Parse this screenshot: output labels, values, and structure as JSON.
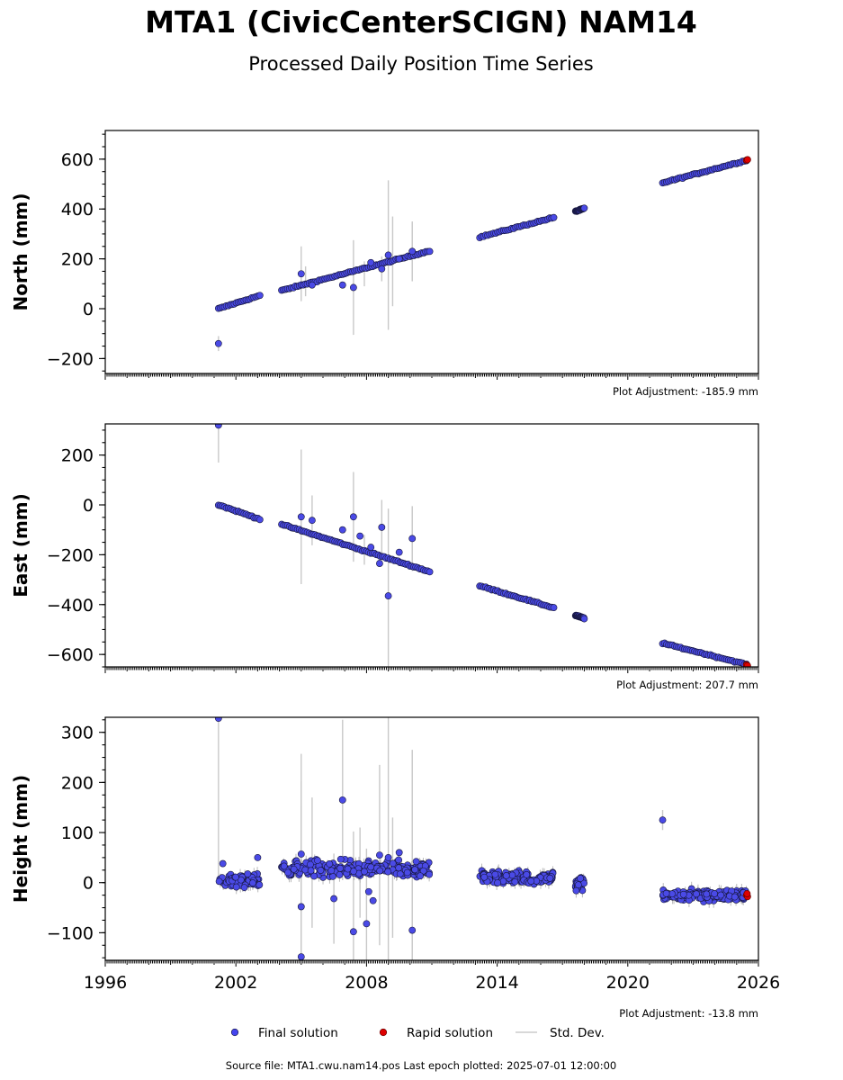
{
  "title": "MTA1 (CivicCenterSCIGN) NAM14",
  "subtitle": "Processed Daily Position Time Series",
  "footer": "Source file: MTA1.cwu.nam14.pos  Last epoch plotted: 2025-07-01 12:00:00",
  "legend": [
    {
      "label": "Final solution",
      "kind": "final-dot",
      "color": "#4444ee"
    },
    {
      "label": "Rapid solution",
      "kind": "rapid-dot",
      "color": "#dd0000"
    },
    {
      "label": "Std. Dev.",
      "kind": "stddev-line",
      "color": "#cccccc"
    }
  ],
  "chart_data": [
    {
      "type": "scatter",
      "ylabel": "North (mm)",
      "adjustment": "Plot Adjustment: -185.9 mm",
      "xlim": [
        1996,
        2026
      ],
      "ylim": [
        -260,
        715
      ],
      "yticks": [
        -200,
        0,
        200,
        400,
        600
      ],
      "ytick_labels": [
        "−200",
        "0",
        "200",
        "400",
        "600"
      ],
      "segments": [
        {
          "x0": 2001.2,
          "y0": 0,
          "x1": 2003.1,
          "y1": 53
        },
        {
          "x0": 2004.1,
          "y0": 73,
          "x1": 2010.9,
          "y1": 232
        },
        {
          "x0": 2013.2,
          "y0": 287,
          "x1": 2016.6,
          "y1": 366
        },
        {
          "x0": 2017.6,
          "y0": 390,
          "x1": 2018.0,
          "y1": 402
        },
        {
          "x0": 2021.6,
          "y0": 505,
          "x1": 2025.45,
          "y1": 595
        }
      ],
      "rapid": [
        [
          2025.45,
          596
        ],
        [
          2025.5,
          598
        ]
      ],
      "outliers": [
        [
          2001.2,
          -140,
          30
        ],
        [
          2005.0,
          140,
          110
        ],
        [
          2005.5,
          95,
          30
        ],
        [
          2006.9,
          95,
          30
        ],
        [
          2007.4,
          85,
          190
        ],
        [
          2008.2,
          185,
          40
        ],
        [
          2008.7,
          160,
          50
        ],
        [
          2009.0,
          215,
          300
        ],
        [
          2009.5,
          200,
          20
        ],
        [
          2010.1,
          230,
          120
        ]
      ],
      "sigma_bars": [
        [
          2001.2,
          -140,
          30
        ],
        [
          2005.0,
          140,
          110
        ],
        [
          2007.4,
          85,
          190
        ],
        [
          2009.0,
          215,
          300
        ],
        [
          2009.2,
          190,
          180
        ],
        [
          2010.1,
          230,
          120
        ],
        [
          2005.2,
          110,
          60
        ],
        [
          2007.9,
          140,
          50
        ],
        [
          2008.7,
          160,
          50
        ]
      ]
    },
    {
      "type": "scatter",
      "ylabel": "East (mm)",
      "adjustment": "Plot Adjustment: 207.7 mm",
      "xlim": [
        1996,
        2026
      ],
      "ylim": [
        -650,
        325
      ],
      "yticks": [
        -600,
        -400,
        -200,
        0,
        200
      ],
      "ytick_labels": [
        "−600",
        "−400",
        "−200",
        "0",
        "200"
      ],
      "segments": [
        {
          "x0": 2001.2,
          "y0": 0,
          "x1": 2003.1,
          "y1": -57
        },
        {
          "x0": 2004.1,
          "y0": -78,
          "x1": 2010.9,
          "y1": -268
        },
        {
          "x0": 2013.2,
          "y0": -325,
          "x1": 2016.6,
          "y1": -413
        },
        {
          "x0": 2017.6,
          "y0": -443,
          "x1": 2018.0,
          "y1": -455
        },
        {
          "x0": 2021.6,
          "y0": -555,
          "x1": 2025.45,
          "y1": -640
        }
      ],
      "rapid": [
        [
          2025.45,
          -642
        ],
        [
          2025.5,
          -645
        ]
      ],
      "outliers": [
        [
          2001.2,
          320,
          150
        ],
        [
          2005.0,
          -48,
          270
        ],
        [
          2005.5,
          -62,
          100
        ],
        [
          2006.9,
          -100,
          40
        ],
        [
          2007.4,
          -48,
          180
        ],
        [
          2007.7,
          -125,
          40
        ],
        [
          2008.2,
          -170,
          40
        ],
        [
          2008.6,
          -235,
          40
        ],
        [
          2008.7,
          -90,
          110
        ],
        [
          2009.0,
          -365,
          350
        ],
        [
          2009.5,
          -190,
          30
        ],
        [
          2010.1,
          -135,
          130
        ]
      ],
      "sigma_bars": [
        [
          2001.2,
          320,
          150
        ],
        [
          2005.0,
          -48,
          270
        ],
        [
          2005.5,
          -62,
          100
        ],
        [
          2007.4,
          -48,
          180
        ],
        [
          2008.7,
          -90,
          110
        ],
        [
          2009.0,
          -365,
          350
        ],
        [
          2010.1,
          -135,
          130
        ],
        [
          2007.9,
          -180,
          60
        ]
      ]
    },
    {
      "type": "scatter",
      "ylabel": "Height (mm)",
      "adjustment": "Plot Adjustment: -13.8 mm",
      "xlim": [
        1996,
        2026
      ],
      "ylim": [
        -155,
        330
      ],
      "yticks": [
        -100,
        0,
        100,
        200,
        300
      ],
      "ytick_labels": [
        "−100",
        "0",
        "100",
        "200",
        "300"
      ],
      "xticks": [
        1996,
        2002,
        2008,
        2014,
        2020,
        2026
      ],
      "xtick_labels": [
        "1996",
        "2002",
        "2008",
        "2014",
        "2020",
        "2026"
      ],
      "clusters": [
        {
          "x0": 2001.2,
          "x1": 2003.1,
          "center": 5,
          "spread": 22
        },
        {
          "x0": 2004.1,
          "x1": 2010.9,
          "center": 27,
          "spread": 25
        },
        {
          "x0": 2013.2,
          "x1": 2016.6,
          "center": 10,
          "spread": 18
        },
        {
          "x0": 2017.6,
          "x1": 2018.0,
          "center": -3,
          "spread": 20
        },
        {
          "x0": 2021.6,
          "x1": 2025.45,
          "center": -25,
          "spread": 18
        }
      ],
      "rapid": [
        [
          2025.45,
          -25
        ],
        [
          2025.5,
          -28
        ],
        [
          2025.48,
          -22
        ]
      ],
      "outliers": [
        [
          2001.2,
          328,
          330
        ],
        [
          2001.4,
          38,
          20
        ],
        [
          2003.0,
          50,
          20
        ],
        [
          2005.0,
          57,
          200
        ],
        [
          2005.0,
          -48,
          250
        ],
        [
          2005.0,
          -148,
          300
        ],
        [
          2006.5,
          -32,
          90
        ],
        [
          2006.9,
          165,
          160
        ],
        [
          2007.4,
          -98,
          200
        ],
        [
          2008.0,
          -82,
          150
        ],
        [
          2008.1,
          -18,
          40
        ],
        [
          2008.3,
          -36,
          60
        ],
        [
          2008.6,
          55,
          180
        ],
        [
          2009.0,
          50,
          300
        ],
        [
          2009.5,
          60,
          30
        ],
        [
          2010.1,
          -95,
          360
        ],
        [
          2021.6,
          125,
          20
        ]
      ],
      "sigma_bars": [
        [
          2001.2,
          328,
          330
        ],
        [
          2005.0,
          57,
          200
        ],
        [
          2005.0,
          -48,
          250
        ],
        [
          2005.0,
          -148,
          300
        ],
        [
          2005.5,
          40,
          130
        ],
        [
          2006.5,
          -32,
          90
        ],
        [
          2006.9,
          165,
          160
        ],
        [
          2007.4,
          -98,
          200
        ],
        [
          2007.7,
          20,
          90
        ],
        [
          2008.0,
          -82,
          150
        ],
        [
          2008.6,
          55,
          180
        ],
        [
          2009.0,
          50,
          300
        ],
        [
          2009.2,
          10,
          120
        ],
        [
          2010.1,
          -95,
          360
        ],
        [
          2021.6,
          125,
          20
        ]
      ]
    }
  ]
}
